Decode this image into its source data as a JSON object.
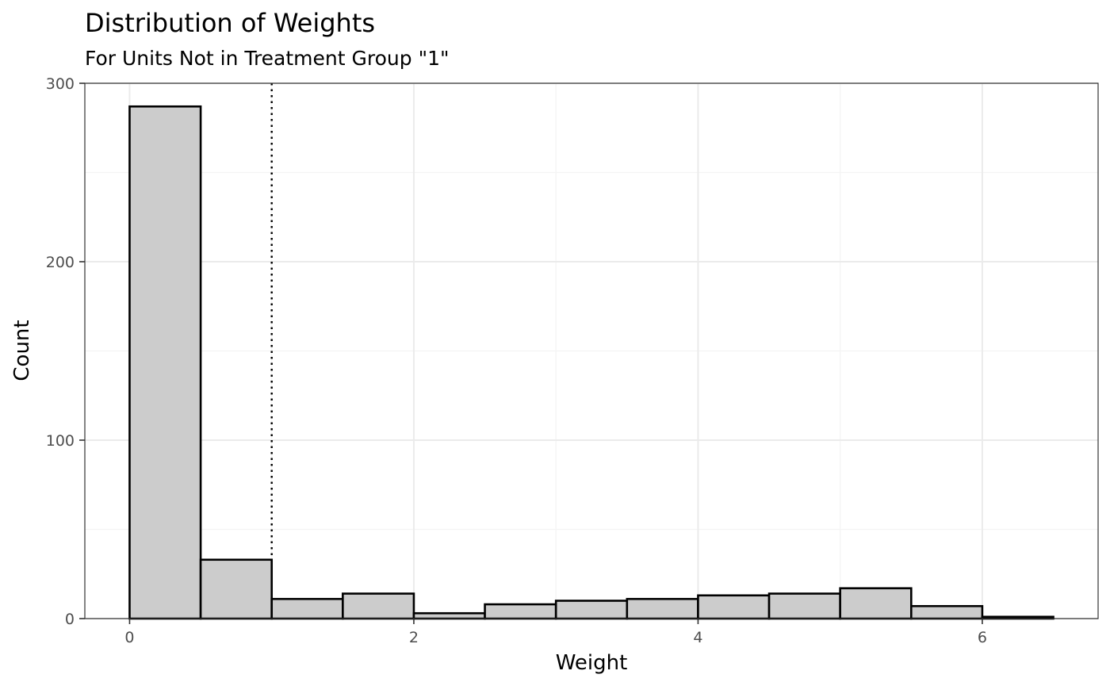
{
  "chart_data": {
    "type": "bar",
    "title": "Distribution of Weights",
    "subtitle": "For Units Not in Treatment Group \"1\"",
    "xlabel": "Weight",
    "ylabel": "Count",
    "bin_width": 0.5,
    "bins": [
      {
        "x0": 0.0,
        "x1": 0.5,
        "count": 287
      },
      {
        "x0": 0.5,
        "x1": 1.0,
        "count": 33
      },
      {
        "x0": 1.0,
        "x1": 1.5,
        "count": 11
      },
      {
        "x0": 1.5,
        "x1": 2.0,
        "count": 14
      },
      {
        "x0": 2.0,
        "x1": 2.5,
        "count": 3
      },
      {
        "x0": 2.5,
        "x1": 3.0,
        "count": 8
      },
      {
        "x0": 3.0,
        "x1": 3.5,
        "count": 10
      },
      {
        "x0": 3.5,
        "x1": 4.0,
        "count": 11
      },
      {
        "x0": 4.0,
        "x1": 4.5,
        "count": 13
      },
      {
        "x0": 4.5,
        "x1": 5.0,
        "count": 14
      },
      {
        "x0": 5.0,
        "x1": 5.5,
        "count": 17
      },
      {
        "x0": 5.5,
        "x1": 6.0,
        "count": 7
      },
      {
        "x0": 6.0,
        "x1": 6.5,
        "count": 1
      }
    ],
    "reference_line": {
      "x": 1.0,
      "style": "dotted"
    },
    "xlim": [
      -0.315,
      6.815
    ],
    "ylim": [
      0,
      300
    ],
    "x_ticks": [
      {
        "value": 0,
        "label": "0"
      },
      {
        "value": 2,
        "label": "2"
      },
      {
        "value": 4,
        "label": "4"
      },
      {
        "value": 6,
        "label": "6"
      }
    ],
    "y_ticks": [
      {
        "value": 0,
        "label": "0"
      },
      {
        "value": 100,
        "label": "100"
      },
      {
        "value": 200,
        "label": "200"
      },
      {
        "value": 300,
        "label": "300"
      }
    ],
    "x_minor_gridlines": [
      1,
      3,
      5
    ],
    "y_minor_gridlines": [
      50,
      150,
      250
    ],
    "grid": true,
    "colors": {
      "bar_fill": "#cccccc",
      "bar_stroke": "#000000",
      "grid_major": "#ebebeb",
      "grid_minor": "#f4f4f4",
      "panel_border": "#333333"
    }
  }
}
